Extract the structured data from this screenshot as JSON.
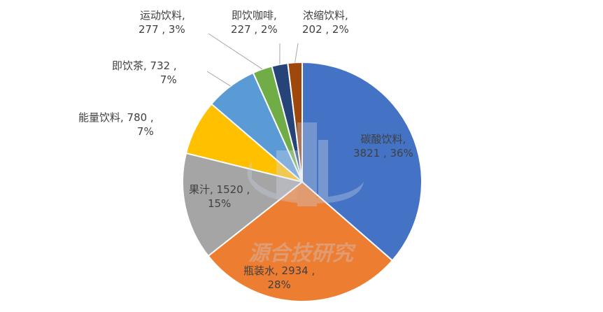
{
  "chart_data": {
    "type": "pie",
    "categories": [
      "碳酸饮料",
      "瓶装水",
      "果汁",
      "能量饮料",
      "即饮茶",
      "运动饮料",
      "即饮咖啡",
      "浓缩饮料"
    ],
    "values": [
      3821,
      2934,
      1520,
      780,
      732,
      277,
      227,
      202
    ],
    "percent_labels": [
      "36%",
      "28%",
      "15%",
      "7%",
      "7%",
      "3%",
      "2%",
      "2%"
    ],
    "colors": [
      "#4472C4",
      "#ED7D31",
      "#A5A5A5",
      "#FFC000",
      "#5B9BD5",
      "#70AD47",
      "#264478",
      "#9E480E"
    ],
    "watermark": "源合技研究",
    "labels": [
      {
        "line1": "碳酸饮料,",
        "line2": "3821 , 36%"
      },
      {
        "line1": "瓶装水, 2934 ,",
        "line2": "28%"
      },
      {
        "line1": "果汁, 1520 ,",
        "line2": "15%"
      },
      {
        "line1": "能量饮料, 780 ,",
        "line2": "7%"
      },
      {
        "line1": "即饮茶, 732 ,",
        "line2": "7%"
      },
      {
        "line1": "运动饮料,",
        "line2": "277 , 3%"
      },
      {
        "line1": "即饮咖啡,",
        "line2": "227 , 2%"
      },
      {
        "line1": "浓缩饮料,",
        "line2": "202 , 2%"
      }
    ]
  }
}
